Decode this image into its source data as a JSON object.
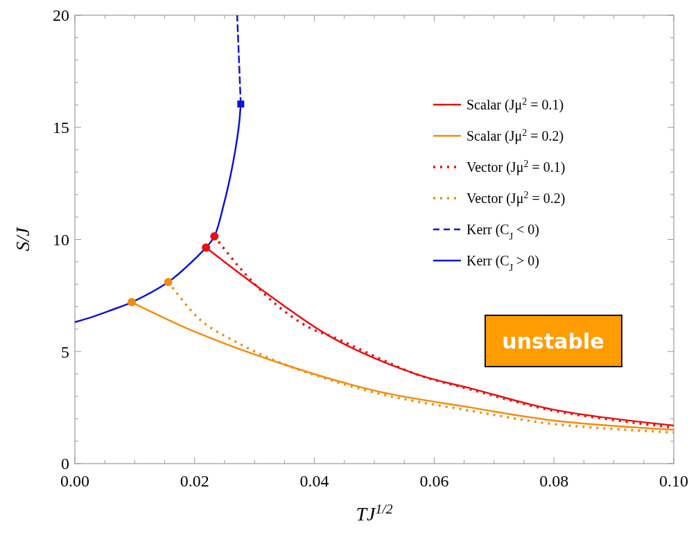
{
  "chart_data": {
    "type": "line",
    "xlabel": "TJ$^{1/2}$",
    "ylabel": "S/J",
    "xlim": [
      0,
      0.1
    ],
    "ylim": [
      0,
      20
    ],
    "xticks": [
      {
        "value": 0,
        "label": "0.00"
      },
      {
        "value": 0.005,
        "label": null
      },
      {
        "value": 0.01,
        "label": null
      },
      {
        "value": 0.015,
        "label": null
      },
      {
        "value": 0.02,
        "label": "0.02"
      },
      {
        "value": 0.025,
        "label": null
      },
      {
        "value": 0.03,
        "label": null
      },
      {
        "value": 0.035,
        "label": null
      },
      {
        "value": 0.04,
        "label": "0.04"
      },
      {
        "value": 0.045,
        "label": null
      },
      {
        "value": 0.05,
        "label": null
      },
      {
        "value": 0.055,
        "label": null
      },
      {
        "value": 0.06,
        "label": "0.06"
      },
      {
        "value": 0.065,
        "label": null
      },
      {
        "value": 0.07,
        "label": null
      },
      {
        "value": 0.075,
        "label": null
      },
      {
        "value": 0.08,
        "label": "0.08"
      },
      {
        "value": 0.085,
        "label": null
      },
      {
        "value": 0.09,
        "label": null
      },
      {
        "value": 0.095,
        "label": null
      },
      {
        "value": 0.1,
        "label": "0.10"
      }
    ],
    "yticks": [
      0,
      {
        "value": 1,
        "label": null
      },
      {
        "value": 2,
        "label": null
      },
      {
        "value": 3,
        "label": null
      },
      {
        "value": 4,
        "label": null
      },
      5,
      {
        "value": 6,
        "label": null
      },
      {
        "value": 7,
        "label": null
      },
      {
        "value": 8,
        "label": null
      },
      {
        "value": 9,
        "label": null
      },
      10,
      {
        "value": 11,
        "label": null
      },
      {
        "value": 12,
        "label": null
      },
      {
        "value": 13,
        "label": null
      },
      {
        "value": 14,
        "label": null
      },
      15,
      {
        "value": 16,
        "label": null
      },
      {
        "value": 17,
        "label": null
      },
      {
        "value": 18,
        "label": null
      },
      {
        "value": 19,
        "label": null
      },
      20
    ],
    "legend": "top right",
    "grid": false,
    "annotations": [
      "unstable"
    ],
    "series": [
      {
        "name": "Scalar (Jμ$^{2}$ = 0.1)",
        "color": "#e81010",
        "line_style": "solid",
        "x": [
          0.0219,
          0.0315,
          0.0431,
          0.0569,
          0.0662,
          0.0801,
          0.1
        ],
        "values": [
          9.64,
          7.7,
          5.6,
          4.0,
          3.35,
          2.4,
          1.7
        ]
      },
      {
        "name": "Scalar (Jμ$^{2}$ = 0.2)",
        "color": "#f48c0c",
        "line_style": "solid",
        "x": [
          0.0095,
          0.0199,
          0.0353,
          0.0508,
          0.0662,
          0.0801,
          0.1
        ],
        "values": [
          7.2,
          5.9,
          4.39,
          3.21,
          2.5,
          1.92,
          1.51
        ]
      },
      {
        "name": "Vector (Jμ$^{2}$ = 0.1)",
        "color": "#e81010",
        "line_style": "dotted",
        "x": [
          0.0233,
          0.0277,
          0.0334,
          0.0392,
          0.0431,
          0.0569,
          0.0662,
          0.0801,
          0.1
        ],
        "values": [
          10.14,
          8.69,
          7.14,
          6.06,
          5.65,
          4.0,
          3.3,
          2.35,
          1.61
        ]
      },
      {
        "name": "Vector (Jμ$^{2}$ = 0.2)",
        "color": "#f48c0c",
        "line_style": "dotted",
        "x": [
          0.0156,
          0.0199,
          0.0222,
          0.0257,
          0.0315,
          0.0373,
          0.0508,
          0.0662,
          0.0801,
          0.1
        ],
        "values": [
          8.1,
          6.68,
          6.15,
          5.6,
          4.82,
          4.2,
          3.12,
          2.35,
          1.76,
          1.39
        ]
      },
      {
        "name": "Kerr (C$_{J}$ < 0)",
        "color": "#0c14d8",
        "line_style": "dashed",
        "x": [
          0.0277,
          0.0274,
          0.0271
        ],
        "values": [
          16.04,
          18.05,
          20
        ]
      },
      {
        "name": "Kerr (C$_{J}$ > 0)",
        "color": "#0c14d8",
        "line_style": "solid",
        "x": [
          0,
          0.003,
          0.006,
          0.0095,
          0.0156,
          0.0184,
          0.0219,
          0.0233,
          0.0249,
          0.026,
          0.0268,
          0.0274,
          0.0277
        ],
        "values": [
          6.31,
          6.55,
          6.84,
          7.2,
          8.1,
          8.72,
          9.64,
          10.14,
          11.6,
          12.86,
          14.0,
          15.1,
          16.04
        ]
      },
      {
        "type": "scatter",
        "marker": "circle",
        "color": "#e81010",
        "x": [
          0.0219,
          0.0233
        ],
        "values": [
          9.64,
          10.14
        ]
      },
      {
        "type": "scatter",
        "marker": "circle",
        "color": "#f48c0c",
        "x": [
          0.0095,
          0.0156
        ],
        "values": [
          7.2,
          8.1
        ]
      },
      {
        "type": "scatter",
        "marker": "square",
        "color": "#0c14d8",
        "x": [
          0.0277
        ],
        "values": [
          16.04
        ]
      }
    ]
  }
}
